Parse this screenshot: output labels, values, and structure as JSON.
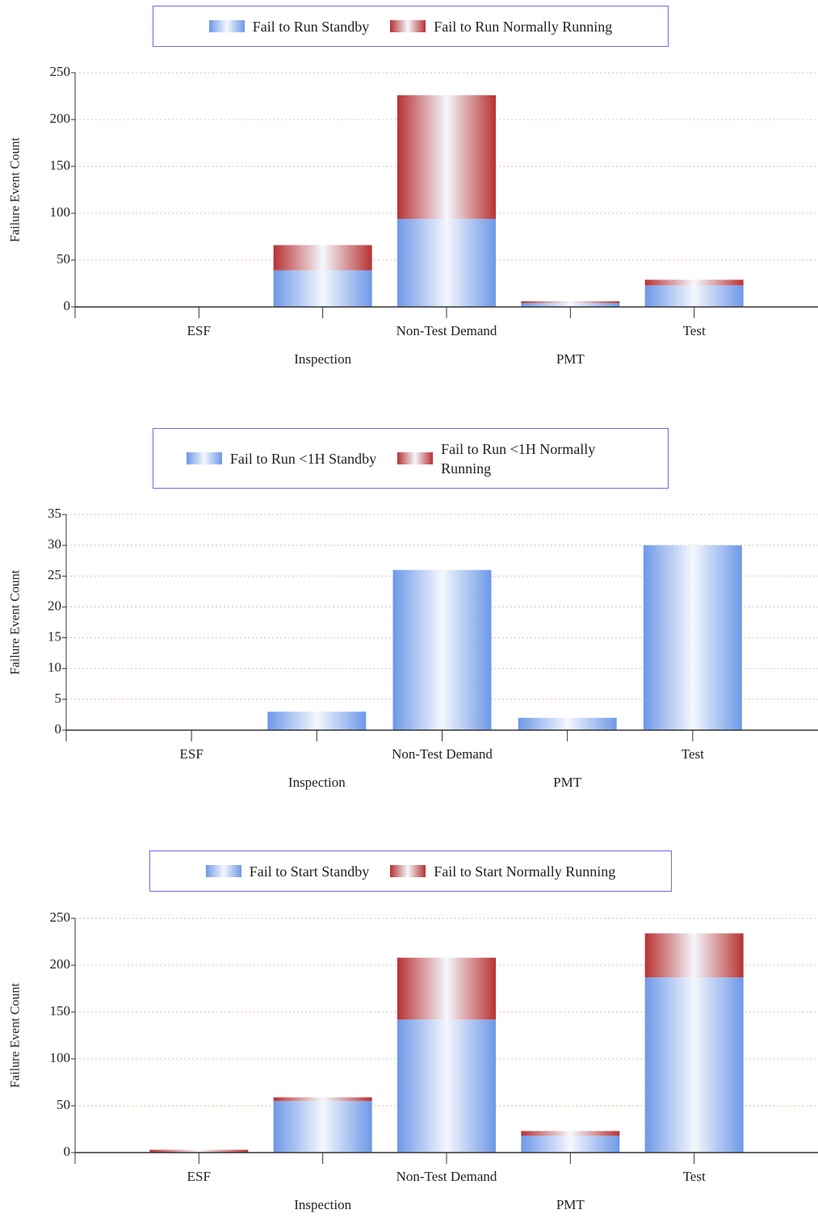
{
  "chart_data": [
    {
      "type": "bar",
      "stacked": true,
      "y_label": "Failure Event Count",
      "categories": [
        "ESF",
        "Inspection",
        "Non-Test Demand",
        "PMT",
        "Test"
      ],
      "series": [
        {
          "name": "Fail to Run Standby",
          "color": "#6e98e8",
          "values": [
            0,
            39,
            94,
            4,
            23
          ]
        },
        {
          "name": "Fail to Run Normally Running",
          "color": "#b83232",
          "values": [
            0,
            27,
            132,
            2,
            6
          ]
        }
      ],
      "ylim": [
        0,
        250
      ],
      "yticks": [
        0,
        50,
        100,
        150,
        200,
        250
      ],
      "grid": true
    },
    {
      "type": "bar",
      "stacked": true,
      "y_label": "Failure Event Count",
      "categories": [
        "ESF",
        "Inspection",
        "Non-Test Demand",
        "PMT",
        "Test"
      ],
      "series": [
        {
          "name": "Fail to Run <1H Standby",
          "color": "#6e98e8",
          "values": [
            0,
            3,
            26,
            2,
            30
          ]
        },
        {
          "name": "Fail to Run <1H Normally Running",
          "color": "#b83232",
          "values": [
            0,
            0,
            0,
            0,
            0
          ]
        }
      ],
      "ylim": [
        0,
        35
      ],
      "yticks": [
        0,
        5,
        10,
        15,
        20,
        25,
        30,
        35
      ],
      "grid": true
    },
    {
      "type": "bar",
      "stacked": true,
      "y_label": "Failure Event Count",
      "categories": [
        "ESF",
        "Inspection",
        "Non-Test Demand",
        "PMT",
        "Test"
      ],
      "series": [
        {
          "name": "Fail to Start Standby",
          "color": "#6e98e8",
          "values": [
            0,
            55,
            142,
            18,
            187
          ]
        },
        {
          "name": "Fail to Start Normally Running",
          "color": "#b83232",
          "values": [
            3,
            4,
            66,
            5,
            47
          ]
        }
      ],
      "ylim": [
        0,
        250
      ],
      "yticks": [
        0,
        50,
        100,
        150,
        200,
        250
      ],
      "grid": true
    }
  ]
}
